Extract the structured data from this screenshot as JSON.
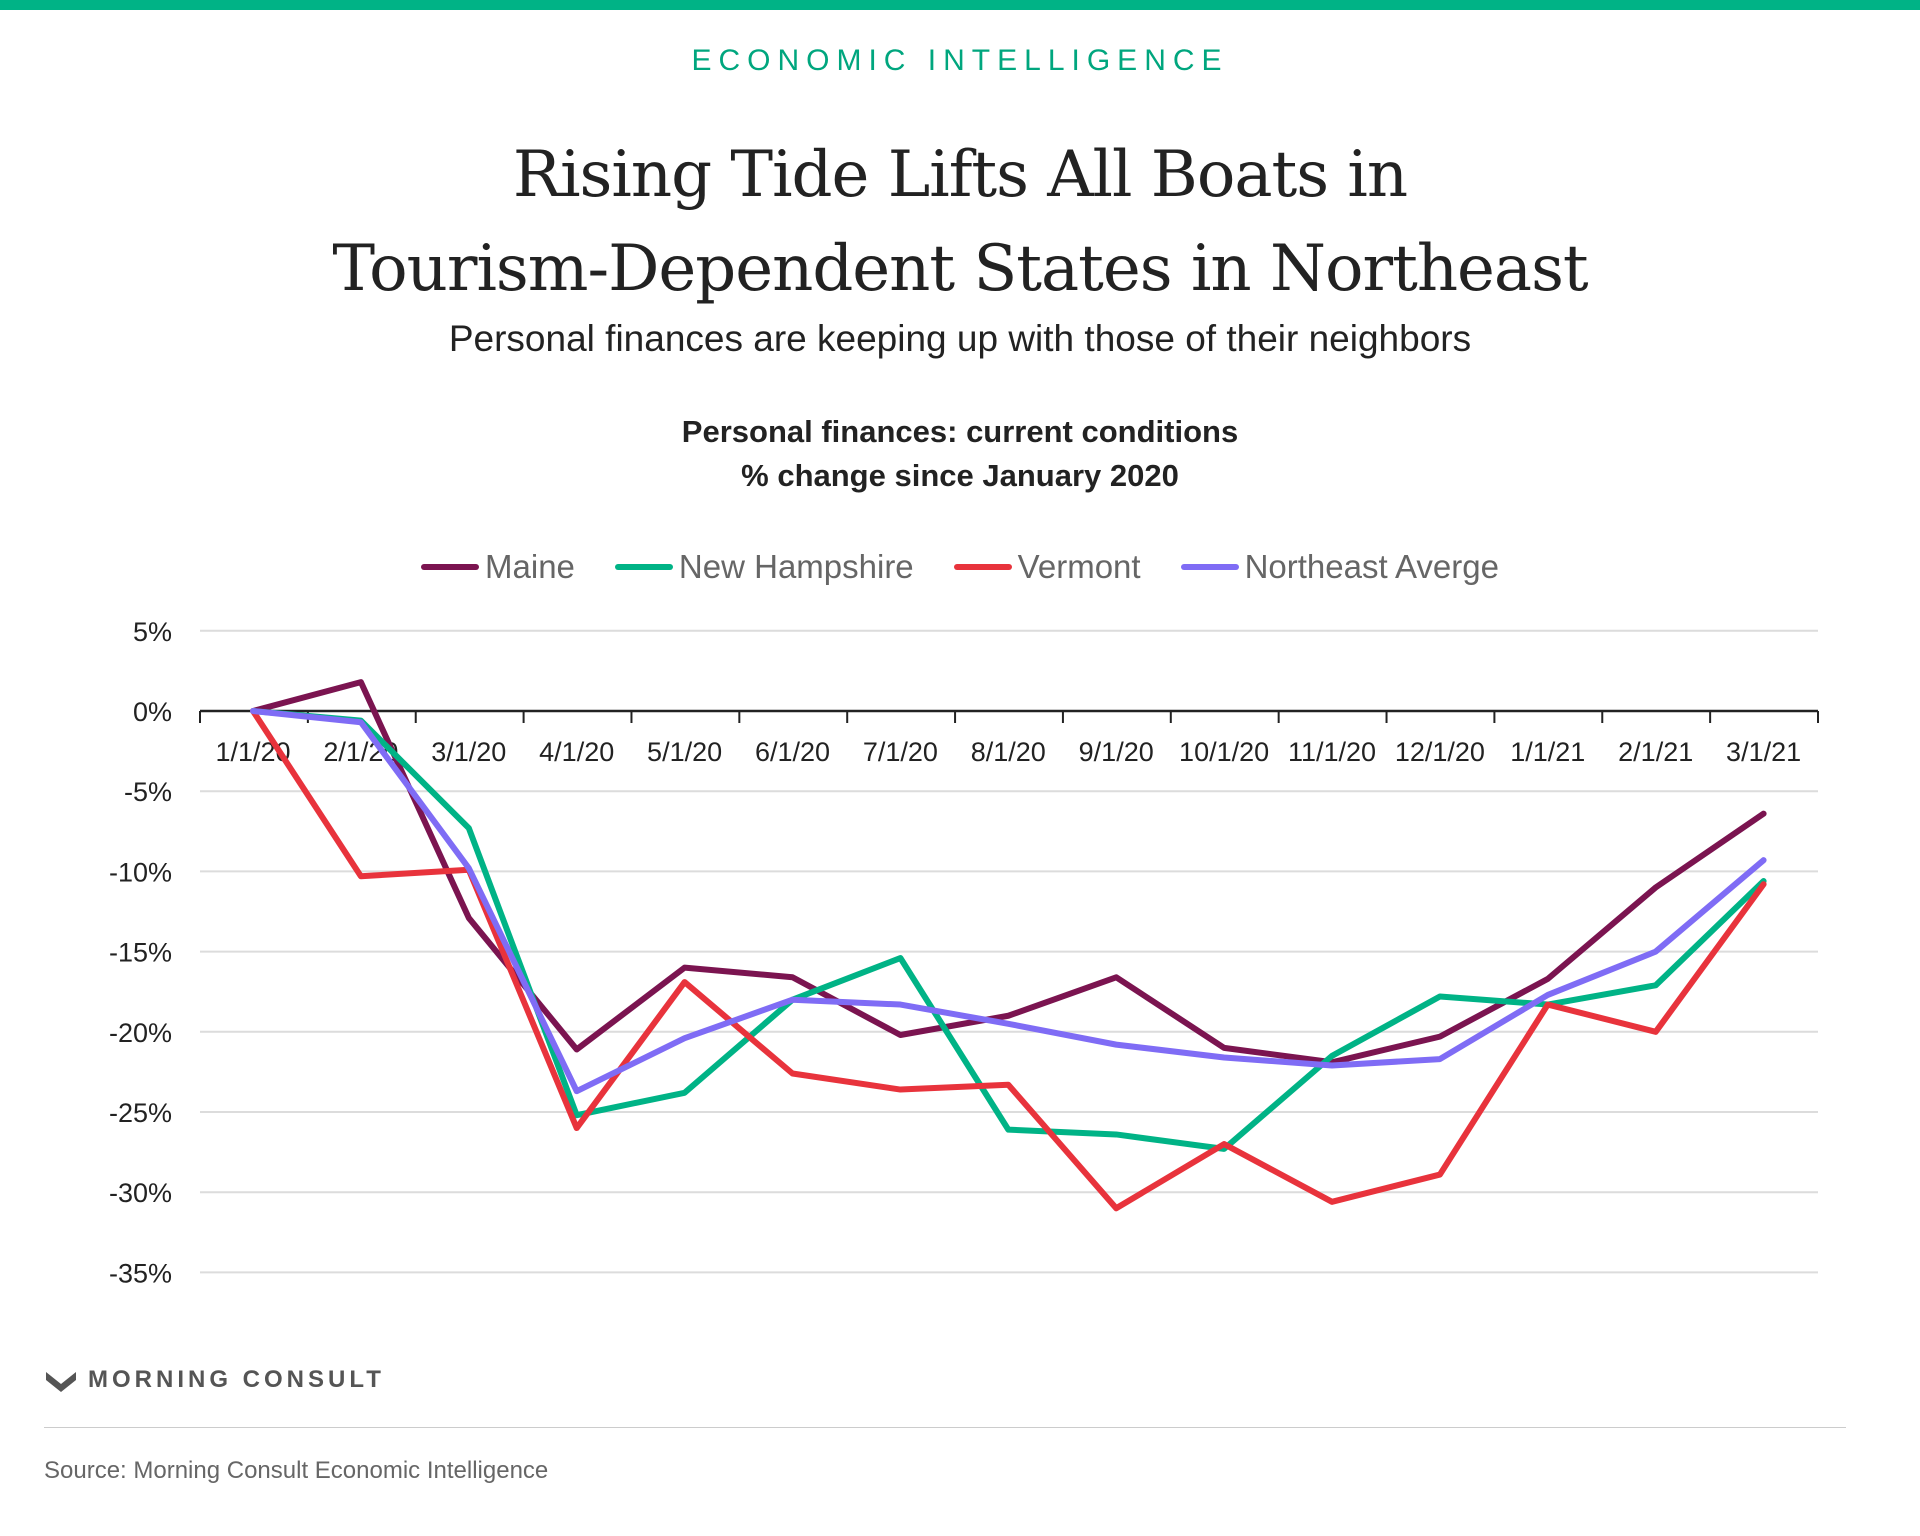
{
  "header": {
    "kicker": "ECONOMIC INTELLIGENCE",
    "title_line1": "Rising Tide Lifts All Boats in",
    "title_line2": "Tourism-Dependent States in Northeast",
    "subtitle": "Personal finances are keeping up with those of their neighbors"
  },
  "chart_data": {
    "type": "line",
    "title_line1": "Personal finances: current conditions",
    "title_line2": "% change since January 2020",
    "xlabel": "",
    "ylabel": "",
    "categories": [
      "1/1/20",
      "2/1/20",
      "3/1/20",
      "4/1/20",
      "5/1/20",
      "6/1/20",
      "7/1/20",
      "8/1/20",
      "9/1/20",
      "10/1/20",
      "11/1/20",
      "12/1/20",
      "1/1/21",
      "2/1/21",
      "3/1/21"
    ],
    "yticks": [
      5,
      0,
      -5,
      -10,
      -15,
      -20,
      -25,
      -30,
      -35
    ],
    "ytick_labels": [
      "5%",
      "0%",
      "-5%",
      "-10%",
      "-15%",
      "-20%",
      "-25%",
      "-30%",
      "-35%"
    ],
    "ylim": [
      -35,
      5
    ],
    "grid": true,
    "legend_position": "top-center",
    "series": [
      {
        "name": "Maine",
        "color": "#7b1450",
        "values": [
          0,
          1.8,
          -12.9,
          -21.1,
          -16.0,
          -16.6,
          -20.2,
          -19.0,
          -16.6,
          -21.0,
          -21.9,
          -20.3,
          -16.7,
          -11.0,
          -6.4
        ]
      },
      {
        "name": "New Hampshire",
        "color": "#00b386",
        "values": [
          0,
          -0.6,
          -7.3,
          -25.2,
          -23.8,
          -18.0,
          -15.4,
          -26.1,
          -26.4,
          -27.3,
          -21.5,
          -17.8,
          -18.3,
          -17.1,
          -10.6
        ]
      },
      {
        "name": "Vermont",
        "color": "#e8333c",
        "values": [
          0,
          -10.3,
          -9.9,
          -26.0,
          -16.9,
          -22.6,
          -23.6,
          -23.3,
          -31.0,
          -27.0,
          -30.6,
          -28.9,
          -18.3,
          -20.0,
          -10.8
        ]
      },
      {
        "name": "Northeast Averge",
        "color": "#7f6cf5",
        "values": [
          0,
          -0.7,
          -9.8,
          -23.7,
          -20.4,
          -18.0,
          -18.3,
          -19.5,
          -20.8,
          -21.6,
          -22.1,
          -21.7,
          -17.7,
          -15.0,
          -9.3
        ]
      }
    ]
  },
  "footer": {
    "logo_text": "MORNING CONSULT",
    "source": "Source: Morning Consult Economic Intelligence"
  }
}
